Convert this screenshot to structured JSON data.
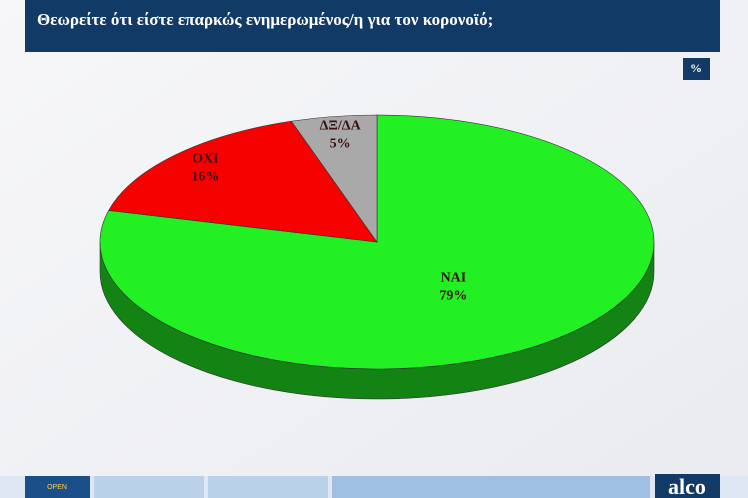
{
  "chart_data": {
    "type": "pie",
    "title": "Θεωρείτε ότι είστε επαρκώς ενημερωμένος/η για τον κορονοϊό;",
    "unit_badge": "%",
    "categories": [
      "ΝΑΙ",
      "ΟΧΙ",
      "ΔΞ/ΔΑ"
    ],
    "values": [
      79,
      16,
      5
    ],
    "value_labels": [
      "79%",
      "16%",
      "5%"
    ],
    "colors": [
      "#22f022",
      "#f70000",
      "#a9a9a9"
    ]
  },
  "footer": {
    "channel_logo": "OPEN",
    "pollster_logo": "alco"
  }
}
